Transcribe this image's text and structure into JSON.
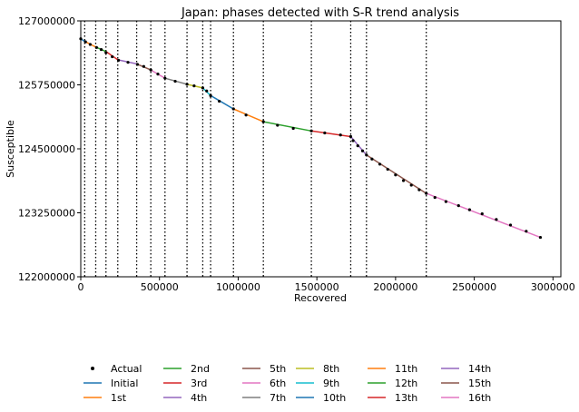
{
  "chart_data": {
    "type": "line",
    "title": "Japan: phases detected with S-R trend analysis",
    "xlabel": "Recovered",
    "ylabel": "Susceptible",
    "xlim": [
      0,
      3050000
    ],
    "ylim": [
      122000000,
      127000000
    ],
    "xticks": [
      0,
      500000,
      1000000,
      1500000,
      2000000,
      2500000,
      3000000
    ],
    "xtick_labels": [
      "0",
      "500000",
      "1000000",
      "1500000",
      "2000000",
      "2500000",
      "3000000"
    ],
    "yticks": [
      122000000,
      123250000,
      124500000,
      125750000,
      127000000
    ],
    "ytick_labels": [
      "122000000",
      "123250000",
      "124500000",
      "125750000",
      "127000000"
    ],
    "grid": false,
    "legend_position": "bottom",
    "change_points": [
      25000,
      95000,
      160000,
      235000,
      355000,
      445000,
      535000,
      675000,
      775000,
      825000,
      970000,
      1160000,
      1465000,
      1715000,
      1815000,
      2195000
    ],
    "series": [
      {
        "name": "Actual",
        "style": "points",
        "color": "#000000",
        "x": [
          0,
          30000,
          60000,
          100000,
          130000,
          160000,
          200000,
          240000,
          300000,
          360000,
          400000,
          445000,
          490000,
          535000,
          600000,
          675000,
          720000,
          775000,
          800000,
          825000,
          880000,
          970000,
          1050000,
          1160000,
          1250000,
          1350000,
          1465000,
          1550000,
          1650000,
          1715000,
          1730000,
          1760000,
          1790000,
          1815000,
          1850000,
          1900000,
          1950000,
          2000000,
          2050000,
          2100000,
          2150000,
          2195000,
          2250000,
          2320000,
          2400000,
          2470000,
          2550000,
          2640000,
          2730000,
          2830000,
          2920000
        ],
        "y": [
          126650000,
          126590000,
          126540000,
          126480000,
          126440000,
          126380000,
          126300000,
          126230000,
          126190000,
          126150000,
          126110000,
          126040000,
          125960000,
          125880000,
          125820000,
          125760000,
          125730000,
          125690000,
          125630000,
          125540000,
          125430000,
          125280000,
          125160000,
          125030000,
          124960000,
          124900000,
          124850000,
          124810000,
          124770000,
          124740000,
          124660000,
          124560000,
          124460000,
          124380000,
          124300000,
          124200000,
          124100000,
          123990000,
          123880000,
          123790000,
          123700000,
          123630000,
          123550000,
          123470000,
          123390000,
          123310000,
          123230000,
          123120000,
          123010000,
          122890000,
          122770000
        ]
      },
      {
        "name": "Initial",
        "color": "#1f77b4",
        "x": [
          0,
          25000
        ],
        "y": [
          126650000,
          126600000
        ]
      },
      {
        "name": "1st",
        "color": "#ff7f0e",
        "x": [
          25000,
          95000
        ],
        "y": [
          126600000,
          126490000
        ]
      },
      {
        "name": "2nd",
        "color": "#2ca02c",
        "x": [
          95000,
          160000
        ],
        "y": [
          126490000,
          126400000
        ]
      },
      {
        "name": "3rd",
        "color": "#d62728",
        "x": [
          160000,
          235000
        ],
        "y": [
          126400000,
          126240000
        ]
      },
      {
        "name": "4th",
        "color": "#9467bd",
        "x": [
          235000,
          355000
        ],
        "y": [
          126240000,
          126160000
        ]
      },
      {
        "name": "5th",
        "color": "#8c564b",
        "x": [
          355000,
          445000
        ],
        "y": [
          126160000,
          126040000
        ]
      },
      {
        "name": "6th",
        "color": "#e377c2",
        "x": [
          445000,
          535000
        ],
        "y": [
          126040000,
          125880000
        ]
      },
      {
        "name": "7th",
        "color": "#7f7f7f",
        "x": [
          535000,
          675000
        ],
        "y": [
          125880000,
          125760000
        ]
      },
      {
        "name": "8th",
        "color": "#bcbd22",
        "x": [
          675000,
          775000
        ],
        "y": [
          125760000,
          125690000
        ]
      },
      {
        "name": "9th",
        "color": "#17becf",
        "x": [
          775000,
          825000
        ],
        "y": [
          125690000,
          125540000
        ]
      },
      {
        "name": "10th",
        "color": "#1f77b4",
        "x": [
          825000,
          970000
        ],
        "y": [
          125540000,
          125280000
        ]
      },
      {
        "name": "11th",
        "color": "#ff7f0e",
        "x": [
          970000,
          1160000
        ],
        "y": [
          125280000,
          125030000
        ]
      },
      {
        "name": "12th",
        "color": "#2ca02c",
        "x": [
          1160000,
          1465000
        ],
        "y": [
          125030000,
          124850000
        ]
      },
      {
        "name": "13th",
        "color": "#d62728",
        "x": [
          1465000,
          1715000
        ],
        "y": [
          124850000,
          124740000
        ]
      },
      {
        "name": "14th",
        "color": "#9467bd",
        "x": [
          1715000,
          1815000
        ],
        "y": [
          124740000,
          124380000
        ]
      },
      {
        "name": "15th",
        "color": "#8c564b",
        "x": [
          1815000,
          2195000
        ],
        "y": [
          124380000,
          123630000
        ]
      },
      {
        "name": "16th",
        "color": "#e377c2",
        "x": [
          2195000,
          2920000
        ],
        "y": [
          123630000,
          122770000
        ]
      }
    ]
  }
}
